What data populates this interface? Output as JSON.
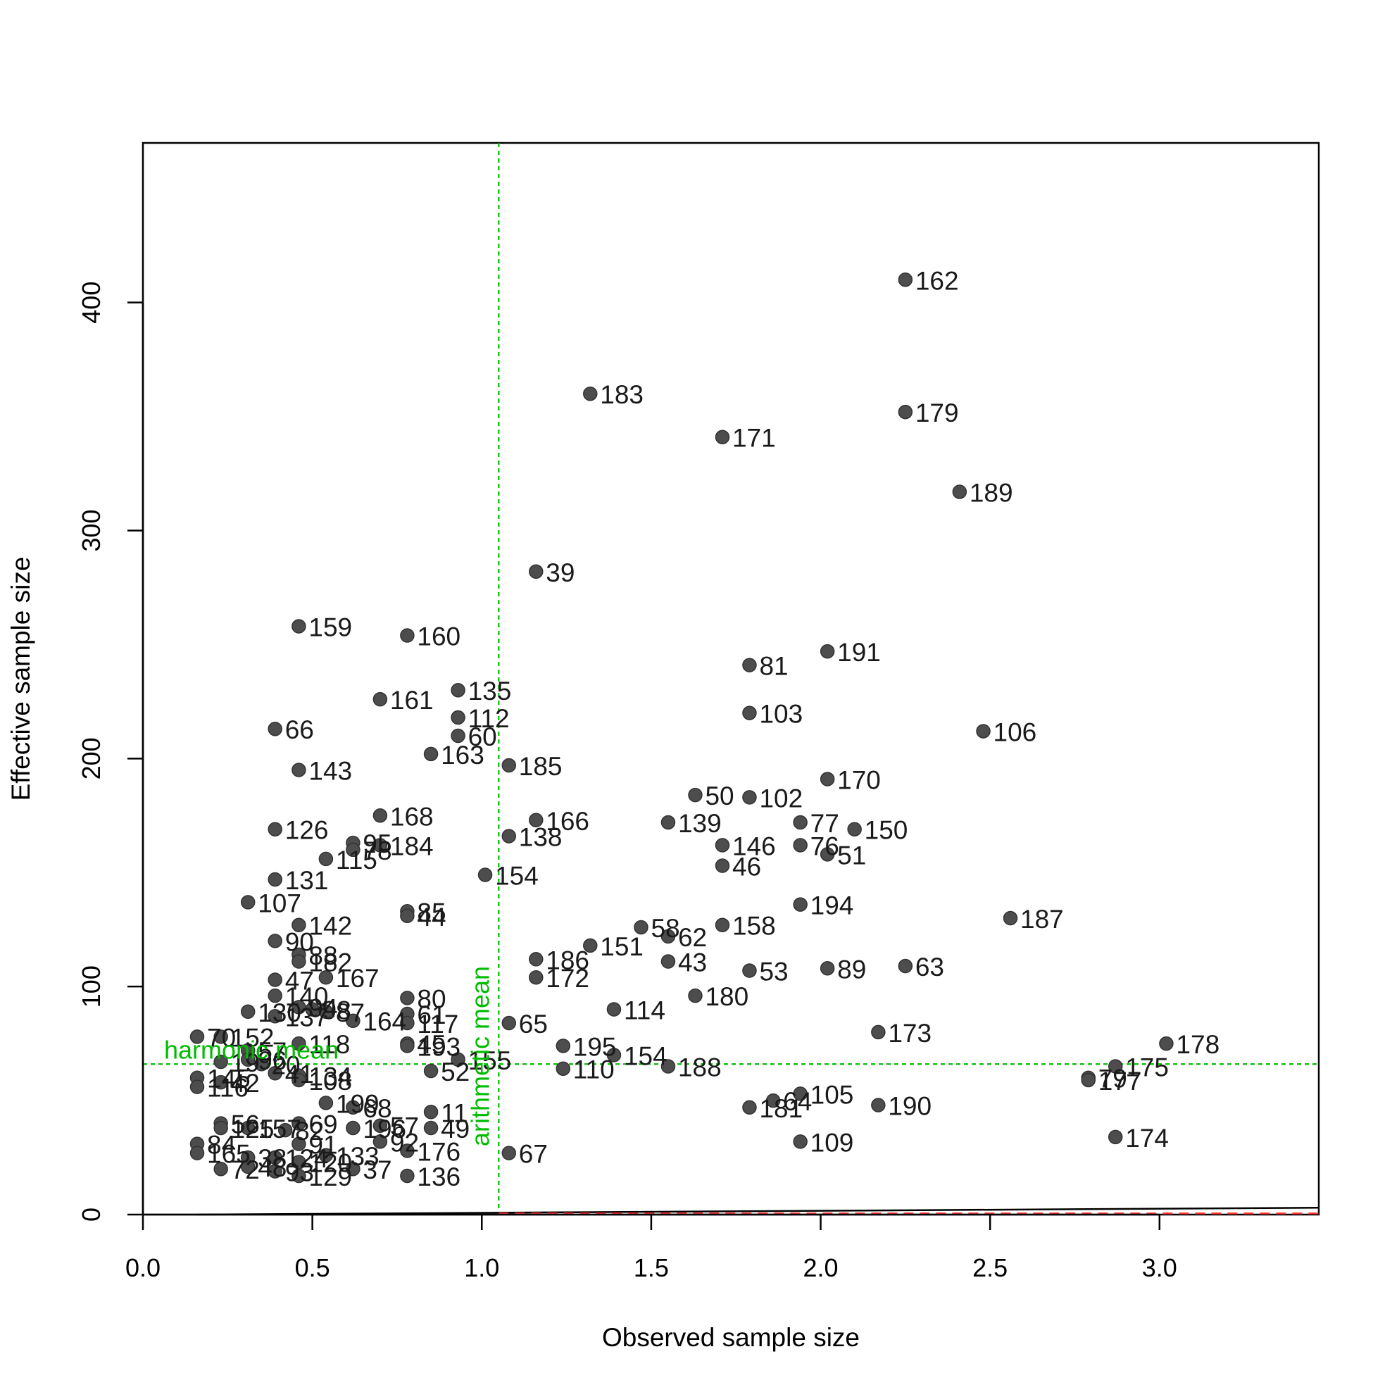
{
  "chart_data": {
    "type": "scatter",
    "title": "",
    "xlabel": "Observed sample size",
    "ylabel": "Effective sample size",
    "xlim": [
      0.0,
      3.47
    ],
    "ylim": [
      0,
      470
    ],
    "x_ticks": [
      {
        "value": 0.0,
        "label": "0.0"
      },
      {
        "value": 0.5,
        "label": "0.5"
      },
      {
        "value": 1.0,
        "label": "1.0"
      },
      {
        "value": 1.5,
        "label": "1.5"
      },
      {
        "value": 2.0,
        "label": "2.0"
      },
      {
        "value": 2.5,
        "label": "2.5"
      },
      {
        "value": 3.0,
        "label": "3.0"
      }
    ],
    "y_ticks": [
      {
        "value": 0,
        "label": "0"
      },
      {
        "value": 100,
        "label": "100"
      },
      {
        "value": 200,
        "label": "200"
      },
      {
        "value": 300,
        "label": "300"
      },
      {
        "value": 400,
        "label": "400"
      }
    ],
    "grid": false,
    "point_color": "#4d4d4d",
    "reference_color": "#00bb00",
    "reference_lines": [
      {
        "orientation": "vertical",
        "value": 1.05,
        "label": "arithmetic mean"
      },
      {
        "orientation": "horizontal",
        "value": 66,
        "label": "harmonic mean"
      }
    ],
    "diagonal_lines": [
      {
        "from": [
          0.16,
          0
        ],
        "to": [
          3.47,
          3.0
        ],
        "color": "#000000",
        "style": "solid"
      },
      {
        "from": [
          1.05,
          0.5
        ],
        "to": [
          3.47,
          0.5
        ],
        "color": "#ff3333",
        "style": "dashed"
      }
    ],
    "points": [
      {
        "label": "162",
        "x": 2.25,
        "y": 410
      },
      {
        "label": "183",
        "x": 1.32,
        "y": 360
      },
      {
        "label": "179",
        "x": 2.25,
        "y": 352
      },
      {
        "label": "171",
        "x": 1.71,
        "y": 341
      },
      {
        "label": "189",
        "x": 2.41,
        "y": 317
      },
      {
        "label": "39",
        "x": 1.16,
        "y": 282
      },
      {
        "label": "159",
        "x": 0.46,
        "y": 258
      },
      {
        "label": "160",
        "x": 0.78,
        "y": 254
      },
      {
        "label": "191",
        "x": 2.02,
        "y": 247
      },
      {
        "label": "81",
        "x": 1.79,
        "y": 241
      },
      {
        "label": "135",
        "x": 0.93,
        "y": 230
      },
      {
        "label": "161",
        "x": 0.7,
        "y": 226
      },
      {
        "label": "103",
        "x": 1.79,
        "y": 220
      },
      {
        "label": "112",
        "x": 0.93,
        "y": 218
      },
      {
        "label": "66",
        "x": 0.39,
        "y": 213
      },
      {
        "label": "106",
        "x": 2.48,
        "y": 212
      },
      {
        "label": "60",
        "x": 0.93,
        "y": 210
      },
      {
        "label": "163",
        "x": 0.85,
        "y": 202
      },
      {
        "label": "185",
        "x": 1.08,
        "y": 197
      },
      {
        "label": "143",
        "x": 0.46,
        "y": 195
      },
      {
        "label": "170",
        "x": 2.02,
        "y": 191
      },
      {
        "label": "50",
        "x": 1.63,
        "y": 184
      },
      {
        "label": "102",
        "x": 1.79,
        "y": 183
      },
      {
        "label": "168",
        "x": 0.7,
        "y": 175
      },
      {
        "label": "166",
        "x": 1.16,
        "y": 173
      },
      {
        "label": "139",
        "x": 1.55,
        "y": 172
      },
      {
        "label": "77",
        "x": 1.94,
        "y": 172
      },
      {
        "label": "126",
        "x": 0.39,
        "y": 169
      },
      {
        "label": "150",
        "x": 2.1,
        "y": 169
      },
      {
        "label": "138",
        "x": 1.08,
        "y": 166
      },
      {
        "label": "95",
        "x": 0.62,
        "y": 163
      },
      {
        "label": "184",
        "x": 0.7,
        "y": 162
      },
      {
        "label": "146",
        "x": 1.71,
        "y": 162
      },
      {
        "label": "76",
        "x": 1.94,
        "y": 162
      },
      {
        "label": "78",
        "x": 0.62,
        "y": 160
      },
      {
        "label": "51",
        "x": 2.02,
        "y": 158
      },
      {
        "label": "115",
        "x": 0.54,
        "y": 156
      },
      {
        "label": "46",
        "x": 1.71,
        "y": 153
      },
      {
        "label": "154",
        "x": 1.01,
        "y": 149
      },
      {
        "label": "131",
        "x": 0.39,
        "y": 147
      },
      {
        "label": "107",
        "x": 0.31,
        "y": 137
      },
      {
        "label": "194",
        "x": 1.94,
        "y": 136
      },
      {
        "label": "85",
        "x": 0.78,
        "y": 133
      },
      {
        "label": "44",
        "x": 0.78,
        "y": 131
      },
      {
        "label": "187",
        "x": 2.56,
        "y": 130
      },
      {
        "label": "142",
        "x": 0.46,
        "y": 127
      },
      {
        "label": "158",
        "x": 1.71,
        "y": 127
      },
      {
        "label": "58",
        "x": 1.47,
        "y": 126
      },
      {
        "label": "62",
        "x": 1.55,
        "y": 122
      },
      {
        "label": "90",
        "x": 0.39,
        "y": 120
      },
      {
        "label": "151",
        "x": 1.32,
        "y": 118
      },
      {
        "label": "88",
        "x": 0.46,
        "y": 114
      },
      {
        "label": "186",
        "x": 1.16,
        "y": 112
      },
      {
        "label": "182",
        "x": 0.46,
        "y": 111
      },
      {
        "label": "43",
        "x": 1.55,
        "y": 111
      },
      {
        "label": "63",
        "x": 2.25,
        "y": 109
      },
      {
        "label": "89",
        "x": 2.02,
        "y": 108
      },
      {
        "label": "53",
        "x": 1.79,
        "y": 107
      },
      {
        "label": "167",
        "x": 0.54,
        "y": 104
      },
      {
        "label": "172",
        "x": 1.16,
        "y": 104
      },
      {
        "label": "47",
        "x": 0.39,
        "y": 103
      },
      {
        "label": "180",
        "x": 1.63,
        "y": 96
      },
      {
        "label": "140",
        "x": 0.39,
        "y": 96
      },
      {
        "label": "80",
        "x": 0.78,
        "y": 95
      },
      {
        "label": "130",
        "x": 0.31,
        "y": 89
      },
      {
        "label": "94",
        "x": 0.46,
        "y": 91
      },
      {
        "label": "98",
        "x": 0.5,
        "y": 90
      },
      {
        "label": "87",
        "x": 0.54,
        "y": 89
      },
      {
        "label": "114",
        "x": 1.39,
        "y": 90
      },
      {
        "label": "61",
        "x": 0.78,
        "y": 88
      },
      {
        "label": "137",
        "x": 0.39,
        "y": 87
      },
      {
        "label": "164",
        "x": 0.62,
        "y": 85
      },
      {
        "label": "117",
        "x": 0.78,
        "y": 84
      },
      {
        "label": "65",
        "x": 1.08,
        "y": 84
      },
      {
        "label": "173",
        "x": 2.17,
        "y": 80
      },
      {
        "label": "70",
        "x": 0.16,
        "y": 78
      },
      {
        "label": "152",
        "x": 0.23,
        "y": 78
      },
      {
        "label": "118",
        "x": 0.46,
        "y": 75
      },
      {
        "label": "45",
        "x": 0.78,
        "y": 75
      },
      {
        "label": "193",
        "x": 0.78,
        "y": 74
      },
      {
        "label": "178",
        "x": 3.02,
        "y": 75
      },
      {
        "label": "195",
        "x": 1.24,
        "y": 74
      },
      {
        "label": "57",
        "x": 0.31,
        "y": 72
      },
      {
        "label": "154",
        "x": 1.39,
        "y": 70
      },
      {
        "label": "96",
        "x": 0.31,
        "y": 68
      },
      {
        "label": "155",
        "x": 0.93,
        "y": 68
      },
      {
        "label": "19",
        "x": 0.23,
        "y": 67
      },
      {
        "label": "20",
        "x": 0.35,
        "y": 66
      },
      {
        "label": "188",
        "x": 1.55,
        "y": 65
      },
      {
        "label": "175",
        "x": 2.87,
        "y": 65
      },
      {
        "label": "110",
        "x": 1.24,
        "y": 64
      },
      {
        "label": "52",
        "x": 0.85,
        "y": 63
      },
      {
        "label": "41",
        "x": 0.39,
        "y": 62
      },
      {
        "label": "134",
        "x": 0.46,
        "y": 61
      },
      {
        "label": "108",
        "x": 0.46,
        "y": 59
      },
      {
        "label": "145",
        "x": 0.16,
        "y": 60
      },
      {
        "label": "79",
        "x": 2.79,
        "y": 60
      },
      {
        "label": "177",
        "x": 2.79,
        "y": 59
      },
      {
        "label": "42",
        "x": 0.23,
        "y": 58
      },
      {
        "label": "116",
        "x": 0.16,
        "y": 56
      },
      {
        "label": "105",
        "x": 1.94,
        "y": 53
      },
      {
        "label": "64",
        "x": 1.86,
        "y": 50
      },
      {
        "label": "199",
        "x": 0.54,
        "y": 49
      },
      {
        "label": "181",
        "x": 1.79,
        "y": 47
      },
      {
        "label": "190",
        "x": 2.17,
        "y": 48
      },
      {
        "label": "68",
        "x": 0.62,
        "y": 47
      },
      {
        "label": "11",
        "x": 0.85,
        "y": 45
      },
      {
        "label": "56",
        "x": 0.23,
        "y": 40
      },
      {
        "label": "69",
        "x": 0.46,
        "y": 40
      },
      {
        "label": "125",
        "x": 0.23,
        "y": 38
      },
      {
        "label": "157",
        "x": 0.31,
        "y": 38
      },
      {
        "label": "196",
        "x": 0.62,
        "y": 38
      },
      {
        "label": "57",
        "x": 0.7,
        "y": 39
      },
      {
        "label": "49",
        "x": 0.85,
        "y": 38
      },
      {
        "label": "82",
        "x": 0.42,
        "y": 37
      },
      {
        "label": "92",
        "x": 0.7,
        "y": 32
      },
      {
        "label": "84",
        "x": 0.16,
        "y": 31
      },
      {
        "label": "91",
        "x": 0.46,
        "y": 31
      },
      {
        "label": "109",
        "x": 1.94,
        "y": 32
      },
      {
        "label": "174",
        "x": 2.87,
        "y": 34
      },
      {
        "label": "176",
        "x": 0.78,
        "y": 28
      },
      {
        "label": "165",
        "x": 0.16,
        "y": 27
      },
      {
        "label": "133",
        "x": 0.54,
        "y": 26
      },
      {
        "label": "38",
        "x": 0.31,
        "y": 25
      },
      {
        "label": "124",
        "x": 0.39,
        "y": 25
      },
      {
        "label": "67",
        "x": 1.08,
        "y": 27
      },
      {
        "label": "120",
        "x": 0.46,
        "y": 23
      },
      {
        "label": "72",
        "x": 0.23,
        "y": 20
      },
      {
        "label": "48",
        "x": 0.31,
        "y": 21
      },
      {
        "label": "37",
        "x": 0.62,
        "y": 20
      },
      {
        "label": "93",
        "x": 0.39,
        "y": 19
      },
      {
        "label": "129",
        "x": 0.46,
        "y": 17
      },
      {
        "label": "136",
        "x": 0.78,
        "y": 17
      }
    ]
  }
}
